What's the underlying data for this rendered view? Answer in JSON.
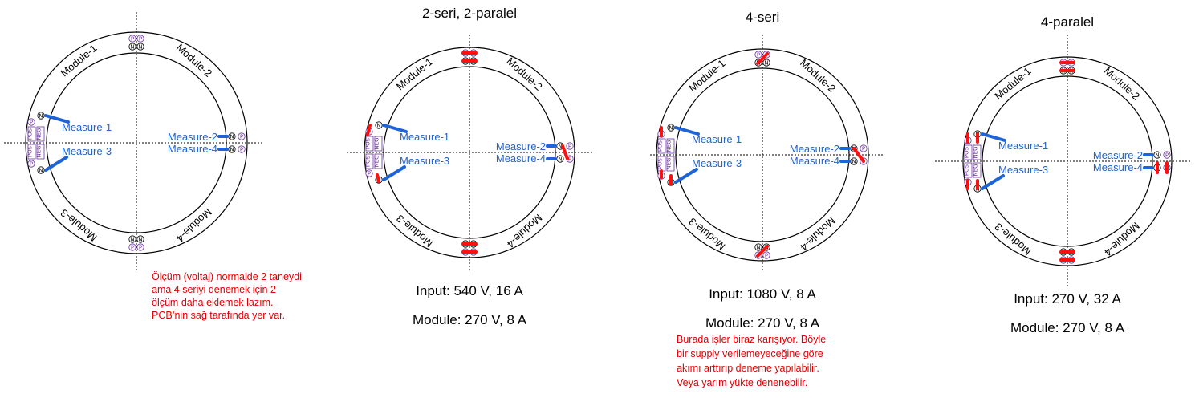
{
  "labels": {
    "module1": "Module-1",
    "module2": "Module-2",
    "module3": "Module-3",
    "module4": "Module-4",
    "measure1": "Measure-1",
    "measure2": "Measure-2",
    "measure3": "Measure-3",
    "measure4": "Measure-4",
    "p": "P",
    "n": "N",
    "pos": "POS",
    "neg": "NEG"
  },
  "panels": [
    {
      "title": "",
      "input": "",
      "module": "",
      "note": [
        "Ölçüm (voltaj) normalde 2 taneydi",
        "ama 4 seriyi denemek için 2",
        "ölçüm daha eklemek lazım.",
        "PCB’nin sağ tarafında yer var."
      ]
    },
    {
      "title": "2-seri, 2-paralel",
      "input": "Input: 540 V, 16 A",
      "module": "Module: 270 V, 8 A",
      "note": []
    },
    {
      "title": "4-seri",
      "input": "Input: 1080 V, 8 A",
      "module": "Module: 270 V, 8 A",
      "note": [
        "Burada işler biraz karışıyor. Böyle",
        "bir supply verilemeyeceğine göre",
        "akımı arttırıp deneme yapılabilir.",
        "Veya yarım yükte denenebilir."
      ]
    },
    {
      "title": "4-paralel",
      "input": "Input: 270 V, 32 A",
      "module": "Module: 270 V, 8 A",
      "note": []
    }
  ],
  "colors": {
    "measure": "#1f64d6",
    "jumper": "#ff1010",
    "note": "#e00000",
    "terminal_label": "#6a2fa0"
  }
}
